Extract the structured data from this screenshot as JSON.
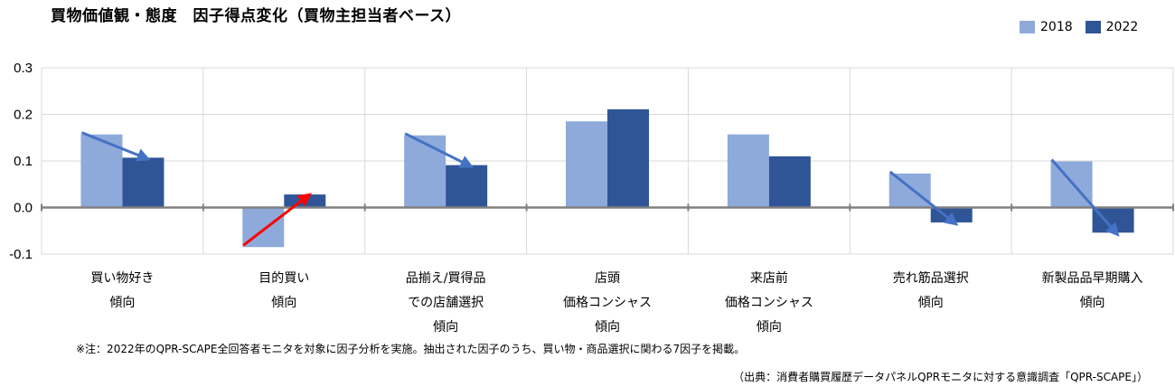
{
  "title": "買物価値観・態度　因子得点変化（買物主担当者ベース）",
  "note": "※注：2022年のQPR-SCAPE全回答者モニタを対象に因子分析を実施。抽出された因子のうち、買い物・商品選択に関わる7因子を掲載。",
  "source": "（出典：消費者購買履歴データパネルQPRモニタに対する意識調査「QPR-SCAPE」）",
  "colors": {
    "series_2018": "#8EAADB",
    "series_2022": "#2F5597",
    "arrow_blue": "#4472C4",
    "arrow_red": "#FF0000",
    "axis": "#808080",
    "grid": "#D9D9D9"
  },
  "chart_data": {
    "type": "bar",
    "categories": [
      [
        "買い物好き",
        "傾向"
      ],
      [
        "目的買い",
        "傾向"
      ],
      [
        "品揃え/買得品",
        "での店舗選択",
        "傾向"
      ],
      [
        "店頭",
        "価格コンシャス",
        "傾向"
      ],
      [
        "来店前",
        "価格コンシャス",
        "傾向"
      ],
      [
        "売れ筋品選択",
        "傾向"
      ],
      [
        "新製品品早期購入",
        "傾向"
      ]
    ],
    "series": [
      {
        "name": "2018",
        "values": [
          0.157,
          -0.085,
          0.155,
          0.185,
          0.157,
          0.073,
          0.099
        ]
      },
      {
        "name": "2022",
        "values": [
          0.107,
          0.028,
          0.091,
          0.211,
          0.11,
          -0.032,
          -0.054
        ]
      }
    ],
    "ylim": [
      -0.1,
      0.3
    ],
    "yticks": [
      "-0.1",
      "0.0",
      "0.1",
      "0.2",
      "0.3"
    ],
    "ytick_values": [
      -0.1,
      0.0,
      0.1,
      0.2,
      0.3
    ],
    "grid": true,
    "legend": "top-right",
    "arrows": [
      {
        "category": 0,
        "direction": "down",
        "color": "blue"
      },
      {
        "category": 1,
        "direction": "up",
        "color": "red"
      },
      {
        "category": 2,
        "direction": "down",
        "color": "blue"
      },
      {
        "category": 5,
        "direction": "down",
        "color": "blue"
      },
      {
        "category": 6,
        "direction": "down",
        "color": "blue"
      }
    ]
  }
}
